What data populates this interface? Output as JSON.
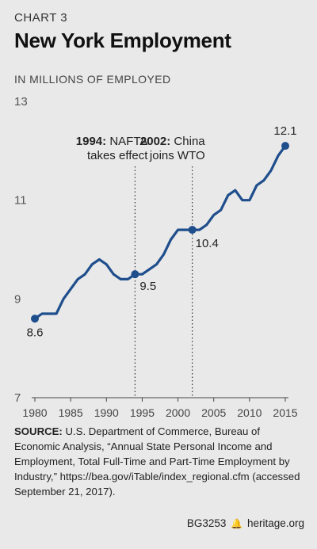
{
  "header": {
    "chart_number": "CHART 3",
    "title": "New York Employment",
    "unit_label": "IN MILLIONS OF EMPLOYED"
  },
  "chart_data": {
    "type": "line",
    "title": "New York Employment",
    "ylabel": "IN MILLIONS OF EMPLOYED",
    "xlabel": "",
    "xlim": [
      1980,
      2015
    ],
    "ylim": [
      7,
      13
    ],
    "x_ticks": [
      1980,
      1985,
      1990,
      1995,
      2000,
      2005,
      2010,
      2015
    ],
    "y_ticks": [
      7,
      9,
      11,
      13
    ],
    "grid": false,
    "color": "#1f4e8c",
    "series": [
      {
        "x": [
          1980,
          1981,
          1982,
          1983,
          1984,
          1985,
          1986,
          1987,
          1988,
          1989,
          1990,
          1991,
          1992,
          1993,
          1994,
          1995,
          1996,
          1997,
          1998,
          1999,
          2000,
          2001,
          2002,
          2003,
          2004,
          2005,
          2006,
          2007,
          2008,
          2009,
          2010,
          2011,
          2012,
          2013,
          2014,
          2015
        ],
        "y": [
          8.6,
          8.7,
          8.7,
          8.7,
          9.0,
          9.2,
          9.4,
          9.5,
          9.7,
          9.8,
          9.7,
          9.5,
          9.4,
          9.4,
          9.5,
          9.5,
          9.6,
          9.7,
          9.9,
          10.2,
          10.4,
          10.4,
          10.4,
          10.4,
          10.5,
          10.7,
          10.8,
          11.1,
          11.2,
          11.0,
          11.0,
          11.3,
          11.4,
          11.6,
          11.9,
          12.1
        ]
      }
    ],
    "highlight_points": [
      {
        "x": 1980,
        "y": 8.6,
        "label": "8.6"
      },
      {
        "x": 1994,
        "y": 9.5,
        "label": "9.5"
      },
      {
        "x": 2002,
        "y": 10.4,
        "label": "10.4"
      },
      {
        "x": 2015,
        "y": 12.1,
        "label": "12.1"
      }
    ],
    "annotations": [
      {
        "x": 1994,
        "bold": "1994:",
        "line1_rest": " NAFTA",
        "line2": "takes effect"
      },
      {
        "x": 2002,
        "bold": "2002:",
        "line1_rest": " China",
        "line2": "joins WTO"
      }
    ]
  },
  "source": {
    "label": "SOURCE:",
    "text": " U.S. Department of Commerce, Bureau of Economic Analysis, “Annual State Personal Income and Employment, Total Full-Time and Part-Time Employment by Industry,” https://bea.gov/iTable/index_regional.cfm (accessed September 21, 2017)."
  },
  "footer": {
    "code": "BG3253",
    "site": "heritage.org"
  }
}
